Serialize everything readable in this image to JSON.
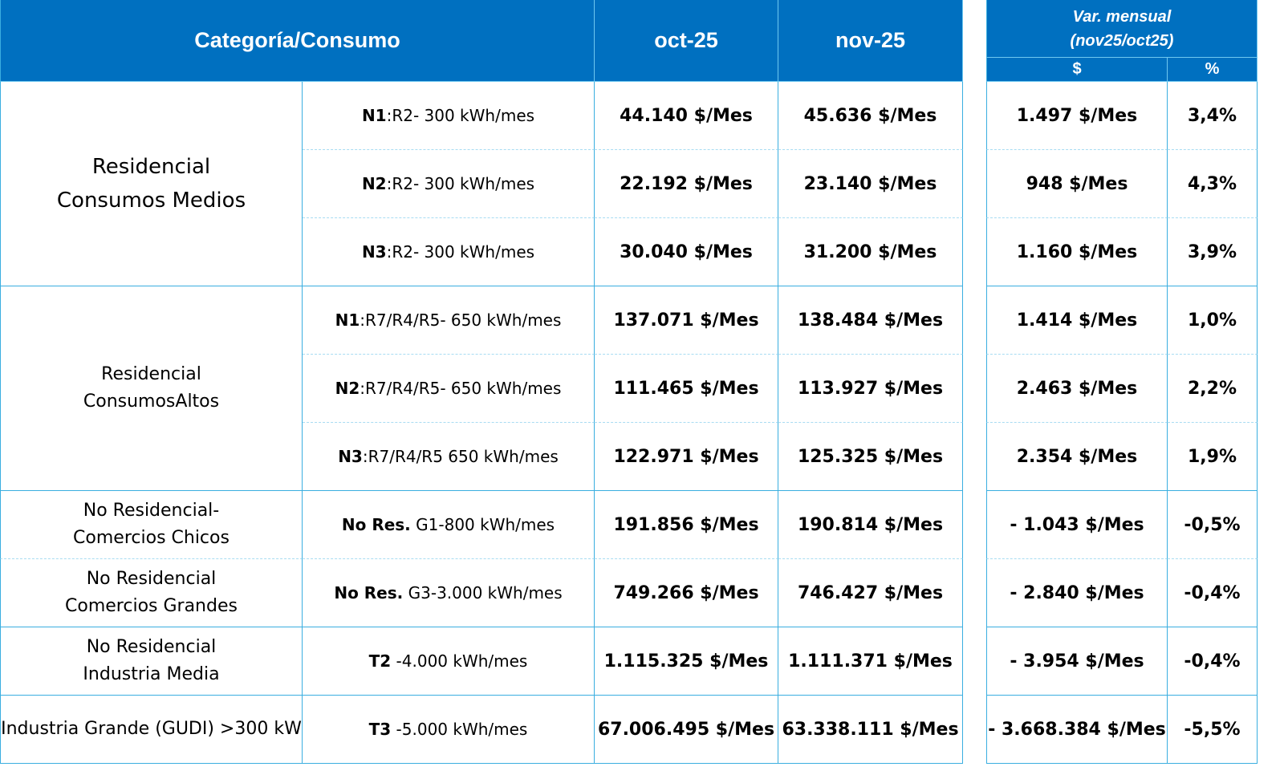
{
  "header": {
    "category": "Categoría/Consumo",
    "oct": "oct-25",
    "nov": "nov-25",
    "var_line1": "Var. mensual",
    "var_line2": "(nov25/oct25)",
    "var_dollar": "$",
    "var_pct": "%"
  },
  "groups": [
    {
      "category": [
        "Residencial",
        "Consumos Medios"
      ],
      "rows": [
        {
          "level": "N1",
          "desc": ":R2- 300 kWh/mes",
          "oct": "44.140 $/Mes",
          "nov": "45.636 $/Mes",
          "var": "1.497 $/Mes",
          "pct": "3,4%"
        },
        {
          "level": "N2",
          "desc": ":R2- 300 kWh/mes",
          "oct": "22.192 $/Mes",
          "nov": "23.140 $/Mes",
          "var": "948 $/Mes",
          "pct": "4,3%"
        },
        {
          "level": "N3",
          "desc": ":R2- 300 kWh/mes",
          "oct": "30.040 $/Mes",
          "nov": "31.200 $/Mes",
          "var": "1.160 $/Mes",
          "pct": "3,9%"
        }
      ]
    },
    {
      "category": [
        "Residencial",
        "ConsumosAltos"
      ],
      "rows": [
        {
          "level": "N1",
          "desc": ":R7/R4/R5- 650 kWh/mes",
          "oct": "137.071 $/Mes",
          "nov": "138.484 $/Mes",
          "var": "1.414 $/Mes",
          "pct": "1,0%"
        },
        {
          "level": "N2",
          "desc": ":R7/R4/R5- 650 kWh/mes",
          "oct": "111.465 $/Mes",
          "nov": "113.927 $/Mes",
          "var": "2.463 $/Mes",
          "pct": "2,2%"
        },
        {
          "level": "N3",
          "desc": ":R7/R4/R5 650 kWh/mes",
          "oct": "122.971 $/Mes",
          "nov": "125.325 $/Mes",
          "var": "2.354 $/Mes",
          "pct": "1,9%"
        }
      ]
    },
    {
      "category": [
        "No Residencial-",
        "Comercios Chicos"
      ],
      "rows": [
        {
          "level": "No Res.",
          "desc": " G1-800 kWh/mes",
          "oct": "191.856 $/Mes",
          "nov": "190.814 $/Mes",
          "var": "- 1.043 $/Mes",
          "pct": "-0,5%"
        }
      ]
    },
    {
      "category": [
        "No Residencial",
        "Comercios Grandes"
      ],
      "rows": [
        {
          "level": "No Res.",
          "desc": " G3-3.000 kWh/mes",
          "oct": "749.266 $/Mes",
          "nov": "746.427 $/Mes",
          "var": "- 2.840 $/Mes",
          "pct": "-0,4%"
        }
      ]
    },
    {
      "category": [
        "No Residencial",
        "Industria Media"
      ],
      "rows": [
        {
          "level": "T2",
          "desc": " -4.000 kWh/mes",
          "oct": "1.115.325 $/Mes",
          "nov": "1.111.371 $/Mes",
          "var": "- 3.954 $/Mes",
          "pct": "-0,4%"
        }
      ]
    },
    {
      "category": [
        "Industria Grande (GUDI) >300 kW"
      ],
      "rows": [
        {
          "level": "T3",
          "desc": " -5.000 kWh/mes",
          "oct": "67.006.495 $/Mes",
          "nov": "63.338.111 $/Mes",
          "var": "- 3.668.384 $/Mes",
          "pct": "-5,5%"
        }
      ]
    }
  ]
}
